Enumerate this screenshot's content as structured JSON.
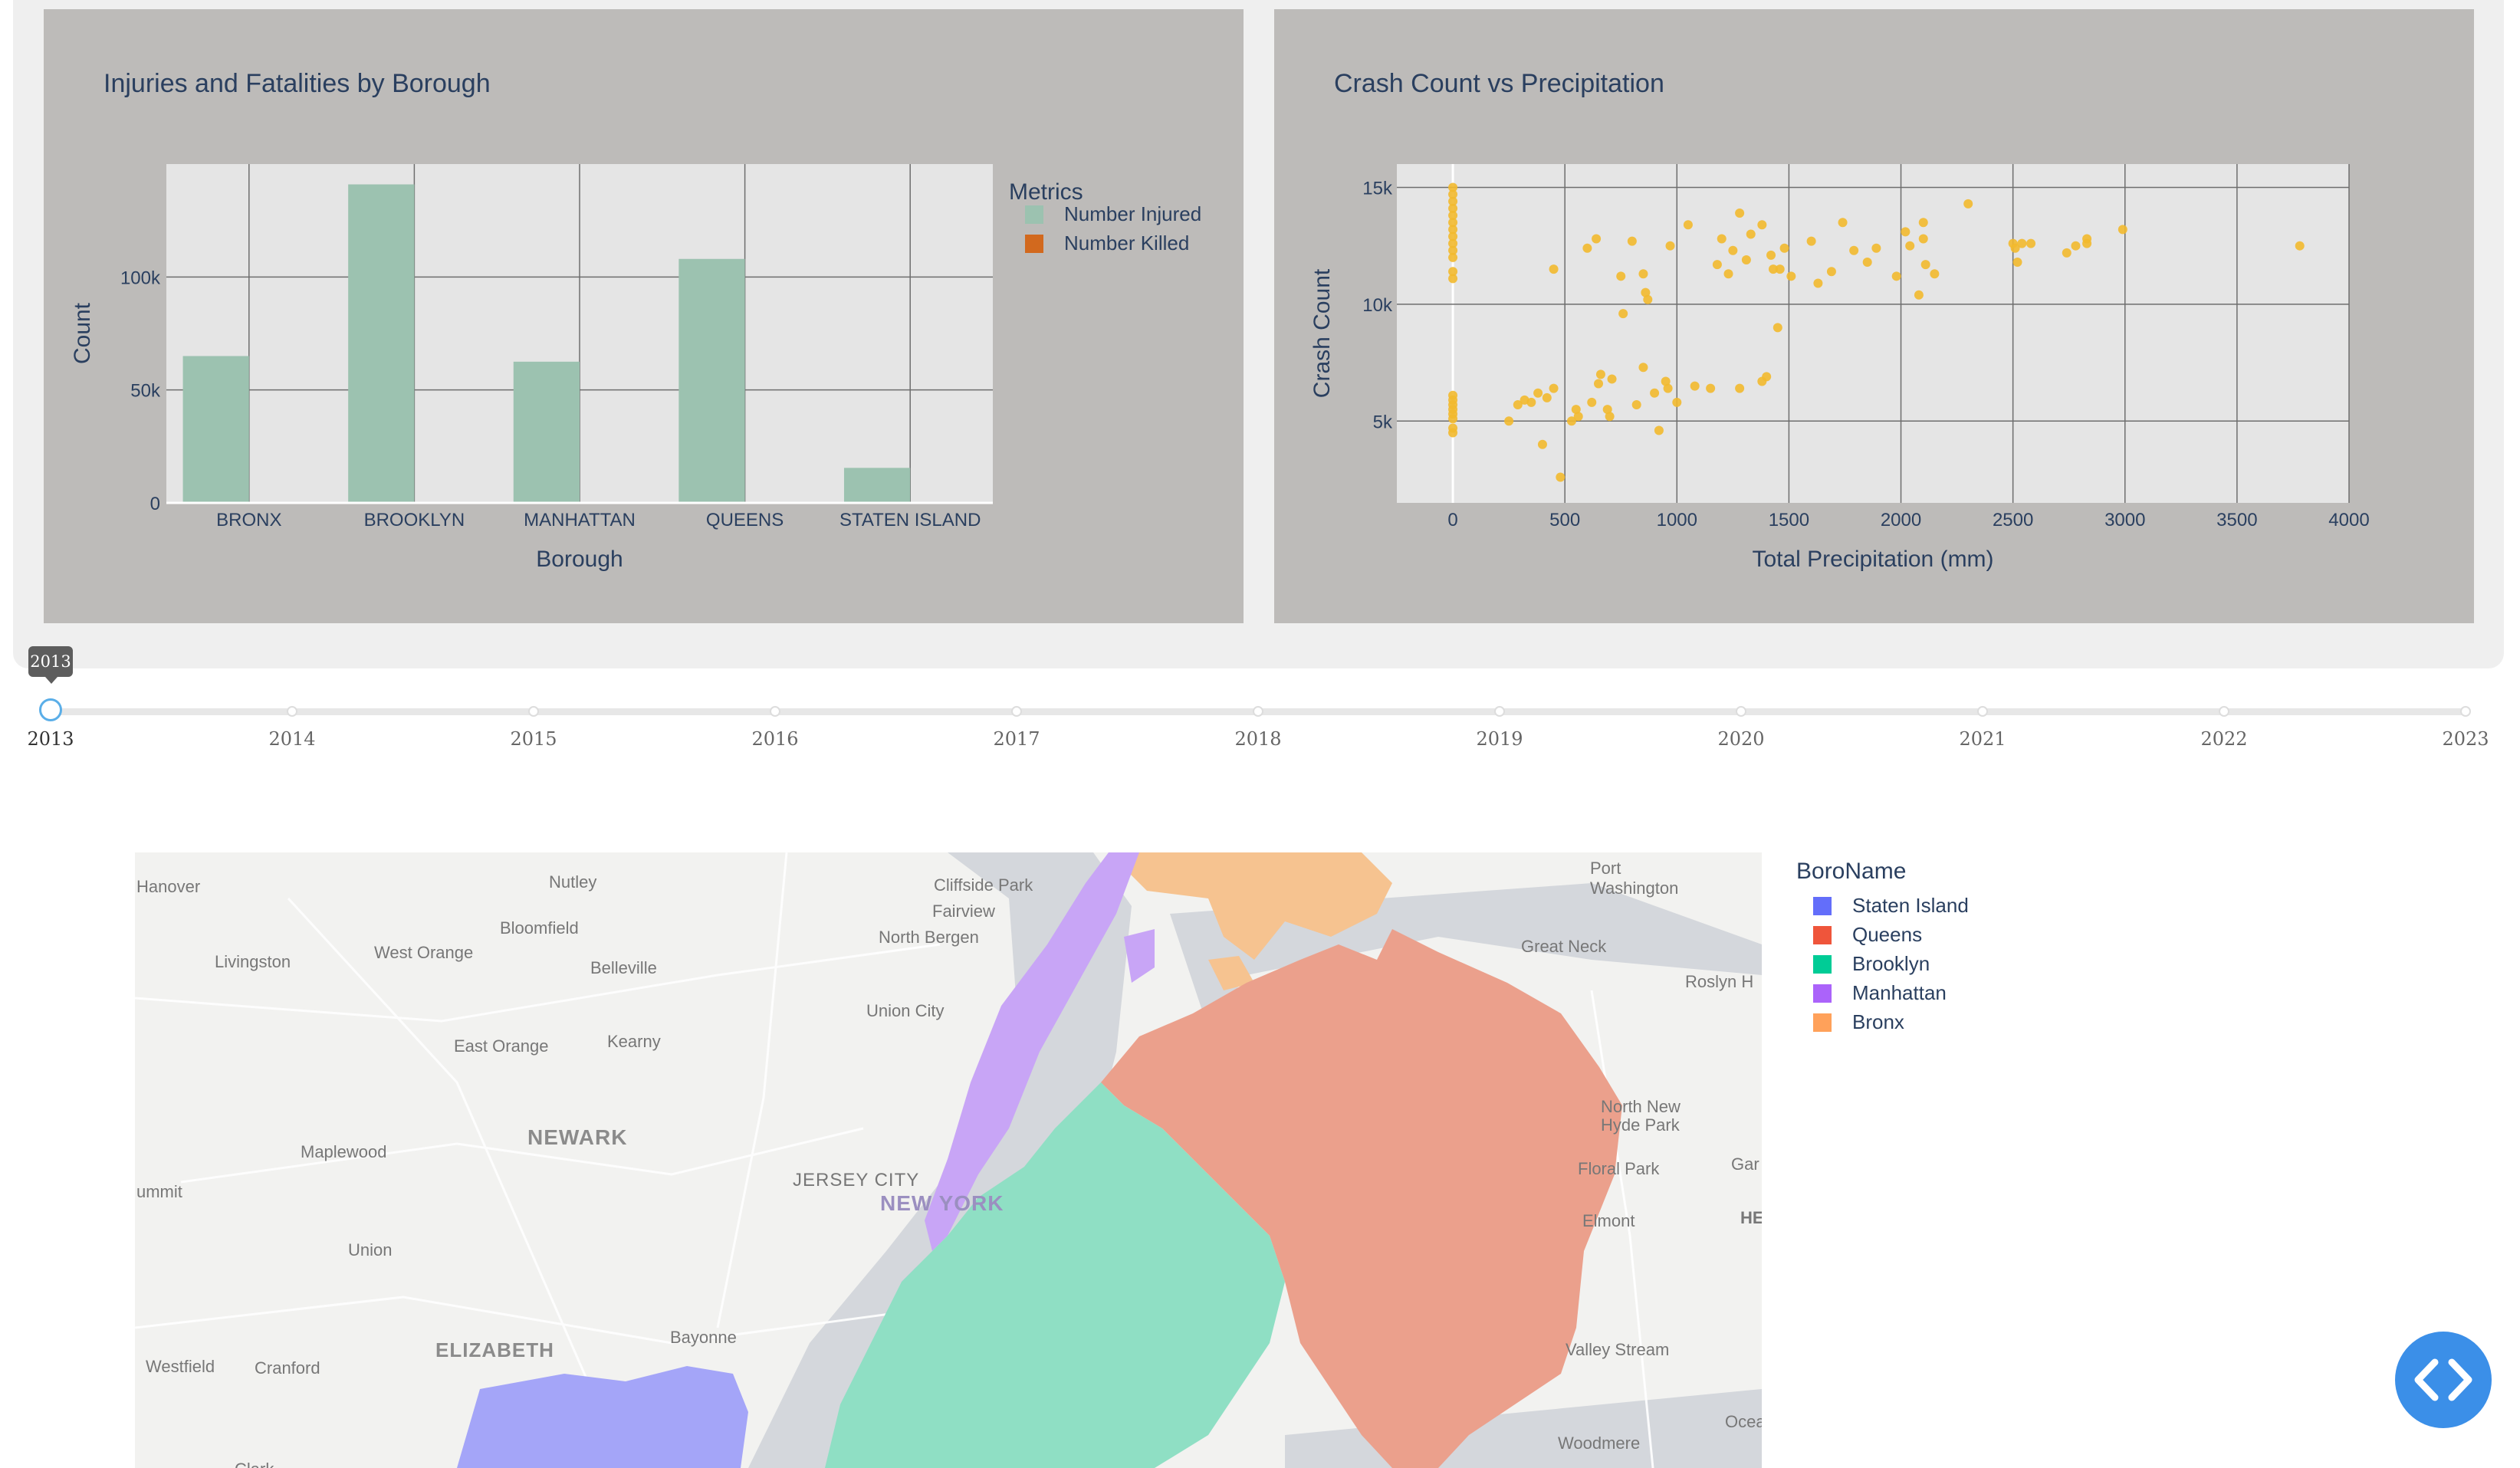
{
  "bar_panel": {
    "title": "Injuries and Fatalities by Borough",
    "xlabel": "Borough",
    "ylabel": "Count",
    "legend_title": "Metrics",
    "legend": [
      "Number Injured",
      "Number Killed"
    ],
    "y_ticks": [
      "0",
      "50k",
      "100k"
    ]
  },
  "scatter_panel": {
    "title": "Crash Count vs Precipitation",
    "xlabel": "Total Precipitation (mm)",
    "ylabel": "Crash Count",
    "x_ticks": [
      "0",
      "500",
      "1000",
      "1500",
      "2000",
      "2500",
      "3000",
      "3500",
      "4000"
    ],
    "y_ticks": [
      "5k",
      "10k",
      "15k"
    ]
  },
  "chart_data": [
    {
      "type": "bar",
      "title": "Injuries and Fatalities by Borough",
      "xlabel": "Borough",
      "ylabel": "Count",
      "categories": [
        "BRONX",
        "BROOKLYN",
        "MANHATTAN",
        "QUEENS",
        "STATEN ISLAND"
      ],
      "series": [
        {
          "name": "Number Injured",
          "values": [
            65000,
            141000,
            62500,
            108000,
            15500
          ]
        },
        {
          "name": "Number Killed",
          "values": [
            150,
            400,
            200,
            300,
            50
          ]
        }
      ],
      "ylim": [
        0,
        150000
      ],
      "colors": [
        "#9cc2b0",
        "#d2691e"
      ],
      "legend_position": "top-right",
      "grid": true
    },
    {
      "type": "scatter",
      "title": "Crash Count vs Precipitation",
      "xlabel": "Total Precipitation (mm)",
      "ylabel": "Crash Count",
      "xlim": [
        -250,
        4000
      ],
      "ylim": [
        1500,
        16000
      ],
      "color": "#f2b92e",
      "grid": true,
      "points": [
        [
          0,
          15000
        ],
        [
          0,
          14700
        ],
        [
          0,
          14400
        ],
        [
          0,
          14100
        ],
        [
          0,
          13800
        ],
        [
          0,
          13500
        ],
        [
          0,
          13200
        ],
        [
          0,
          12900
        ],
        [
          0,
          12600
        ],
        [
          0,
          12300
        ],
        [
          0,
          12000
        ],
        [
          0,
          11400
        ],
        [
          0,
          11100
        ],
        [
          0,
          6100
        ],
        [
          0,
          5900
        ],
        [
          0,
          5700
        ],
        [
          0,
          5500
        ],
        [
          0,
          5300
        ],
        [
          0,
          5100
        ],
        [
          0,
          4700
        ],
        [
          0,
          4500
        ],
        [
          250,
          5000
        ],
        [
          290,
          5700
        ],
        [
          320,
          5900
        ],
        [
          350,
          5800
        ],
        [
          380,
          6200
        ],
        [
          400,
          4000
        ],
        [
          420,
          6000
        ],
        [
          450,
          11500
        ],
        [
          450,
          6400
        ],
        [
          480,
          2600
        ],
        [
          530,
          5000
        ],
        [
          550,
          5500
        ],
        [
          560,
          5200
        ],
        [
          600,
          12400
        ],
        [
          620,
          5800
        ],
        [
          640,
          12800
        ],
        [
          650,
          6600
        ],
        [
          660,
          7000
        ],
        [
          690,
          5500
        ],
        [
          700,
          5200
        ],
        [
          710,
          6800
        ],
        [
          750,
          11200
        ],
        [
          760,
          9600
        ],
        [
          800,
          12700
        ],
        [
          820,
          5700
        ],
        [
          850,
          7300
        ],
        [
          850,
          11300
        ],
        [
          860,
          10500
        ],
        [
          870,
          10200
        ],
        [
          900,
          6200
        ],
        [
          920,
          4600
        ],
        [
          950,
          6700
        ],
        [
          960,
          6400
        ],
        [
          970,
          12500
        ],
        [
          1000,
          5800
        ],
        [
          1050,
          13400
        ],
        [
          1080,
          6500
        ],
        [
          1150,
          6400
        ],
        [
          1180,
          11700
        ],
        [
          1200,
          12800
        ],
        [
          1230,
          11300
        ],
        [
          1250,
          12300
        ],
        [
          1280,
          13900
        ],
        [
          1280,
          6400
        ],
        [
          1310,
          11900
        ],
        [
          1330,
          13000
        ],
        [
          1380,
          13400
        ],
        [
          1380,
          6700
        ],
        [
          1400,
          6900
        ],
        [
          1420,
          12100
        ],
        [
          1430,
          11500
        ],
        [
          1450,
          9000
        ],
        [
          1460,
          11500
        ],
        [
          1480,
          12400
        ],
        [
          1510,
          11200
        ],
        [
          1600,
          12700
        ],
        [
          1630,
          10900
        ],
        [
          1690,
          11400
        ],
        [
          1740,
          13500
        ],
        [
          1790,
          12300
        ],
        [
          1850,
          11800
        ],
        [
          1890,
          12400
        ],
        [
          1980,
          11200
        ],
        [
          2020,
          13100
        ],
        [
          2040,
          12500
        ],
        [
          2080,
          10400
        ],
        [
          2100,
          12800
        ],
        [
          2100,
          13500
        ],
        [
          2110,
          11700
        ],
        [
          2150,
          11300
        ],
        [
          2300,
          14300
        ],
        [
          2500,
          12600
        ],
        [
          2510,
          12400
        ],
        [
          2520,
          11800
        ],
        [
          2540,
          12600
        ],
        [
          2580,
          12600
        ],
        [
          2740,
          12200
        ],
        [
          2780,
          12500
        ],
        [
          2830,
          12600
        ],
        [
          2830,
          12800
        ],
        [
          2990,
          13200
        ],
        [
          3780,
          12500
        ]
      ]
    }
  ],
  "slider": {
    "current": "2013",
    "years": [
      "2013",
      "2014",
      "2015",
      "2016",
      "2017",
      "2018",
      "2019",
      "2020",
      "2021",
      "2022",
      "2023"
    ]
  },
  "map": {
    "legend_title": "BoroName",
    "legend": [
      {
        "name": "Staten Island",
        "color": "#636efa"
      },
      {
        "name": "Queens",
        "color": "#ef553b"
      },
      {
        "name": "Brooklyn",
        "color": "#00cc96"
      },
      {
        "name": "Manhattan",
        "color": "#ab63fa"
      },
      {
        "name": "Bronx",
        "color": "#ffa15a"
      }
    ],
    "places": {
      "hanover": "Hanover",
      "nutley": "Nutley",
      "cliffside": "Cliffside Park",
      "port_washington": "Port Washington",
      "fairview": "Fairview",
      "bloomfield": "Bloomfield",
      "north_bergen": "North Bergen",
      "livingston": "Livingston",
      "west_orange": "West Orange",
      "belleville": "Belleville",
      "great_neck": "Great Neck",
      "roslyn": "Roslyn H",
      "union_city": "Union City",
      "east_orange": "East Orange",
      "kearny": "Kearny",
      "north_new_hyde": "North New Hyde Park",
      "newark": "NEWARK",
      "maplewood": "Maplewood",
      "jersey_city": "JERSEY CITY",
      "new_york": "NEW YORK",
      "floral_park": "Floral Park",
      "gar": "Gar",
      "summit": "ummit",
      "union": "Union",
      "elmont": "Elmont",
      "he": "HE",
      "bayonne": "Bayonne",
      "elizabeth": "ELIZABETH",
      "westfield": "Westfield",
      "cranford": "Cranford",
      "valley_stream": "Valley Stream",
      "woodmere": "Woodmere",
      "ocea": "Ocea",
      "clark": "Clark"
    }
  }
}
